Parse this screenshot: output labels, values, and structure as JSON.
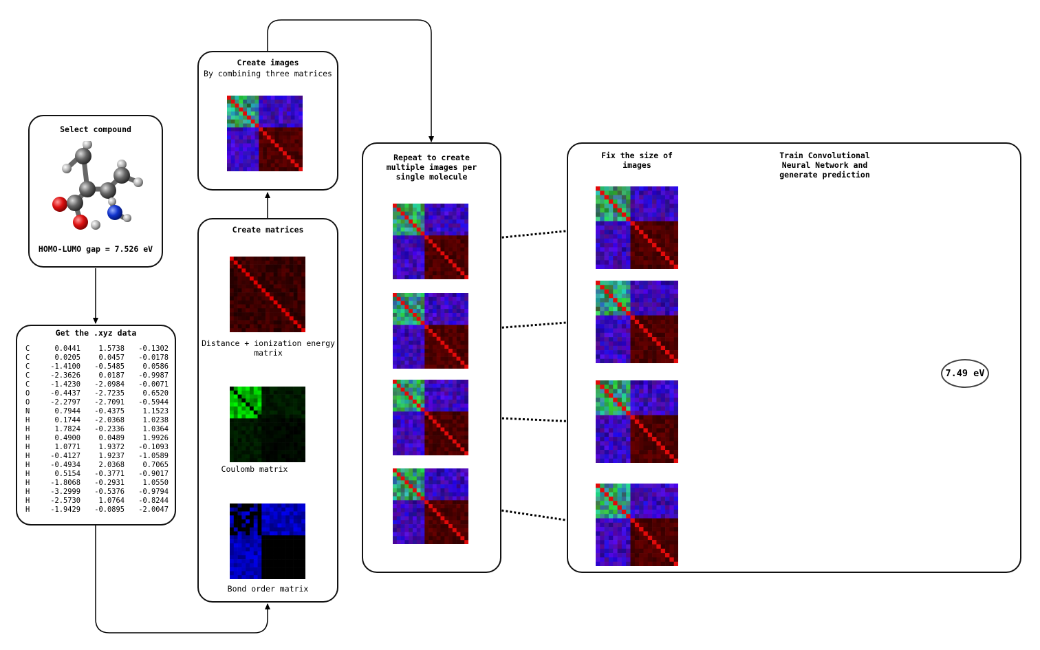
{
  "select": {
    "title": "Select compound",
    "gap_label": "HOMO-LUMO gap = 7.526 eV"
  },
  "xyz": {
    "title": "Get the .xyz data",
    "rows": [
      [
        "C",
        "0.0441",
        "1.5738",
        "-0.1302"
      ],
      [
        "C",
        "0.0205",
        "0.0457",
        "-0.0178"
      ],
      [
        "C",
        "-1.4100",
        "-0.5485",
        "0.0586"
      ],
      [
        "C",
        "-2.3626",
        "0.0187",
        "-0.9987"
      ],
      [
        "C",
        "-1.4230",
        "-2.0984",
        "-0.0071"
      ],
      [
        "O",
        "-0.4437",
        "-2.7235",
        "0.6520"
      ],
      [
        "O",
        "-2.2797",
        "-2.7091",
        "-0.5944"
      ],
      [
        "N",
        "0.7944",
        "-0.4375",
        "1.1523"
      ],
      [
        "H",
        "0.1744",
        "-2.0368",
        "1.0238"
      ],
      [
        "H",
        "1.7824",
        "-0.2336",
        "1.0364"
      ],
      [
        "H",
        "0.4900",
        "0.0489",
        "1.9926"
      ],
      [
        "H",
        "1.0771",
        "1.9372",
        "-0.1093"
      ],
      [
        "H",
        "-0.4127",
        "1.9237",
        "-1.0589"
      ],
      [
        "H",
        "-0.4934",
        "2.0368",
        "0.7065"
      ],
      [
        "H",
        "0.5154",
        "-0.3771",
        "-0.9017"
      ],
      [
        "H",
        "-1.8068",
        "-0.2931",
        "1.0550"
      ],
      [
        "H",
        "-3.2999",
        "-0.5376",
        "-0.9794"
      ],
      [
        "H",
        "-2.5730",
        "1.0764",
        "-0.8244"
      ],
      [
        "H",
        "-1.9429",
        "-0.0895",
        "-2.0047"
      ]
    ]
  },
  "matrices": {
    "title": "Create matrices",
    "distance_caption": "Distance + ionization energy matrix",
    "coulomb_caption": "Coulomb matrix",
    "bond_caption": "Bond order matrix"
  },
  "images": {
    "title": "Create images",
    "subtitle": "By combining three matrices"
  },
  "repeat": {
    "title": "Repeat to create multiple images per single molecule"
  },
  "cnn": {
    "fix_title": "Fix the size of images",
    "train_title": "Train Convolutional Neural Network and generate prediction",
    "prediction": "7.49 eV"
  },
  "colors": {
    "matrix_diag": "#e01010",
    "coulomb_green": "#22cc22",
    "bond_blue": "#2020ee",
    "box_border": "#111111"
  }
}
